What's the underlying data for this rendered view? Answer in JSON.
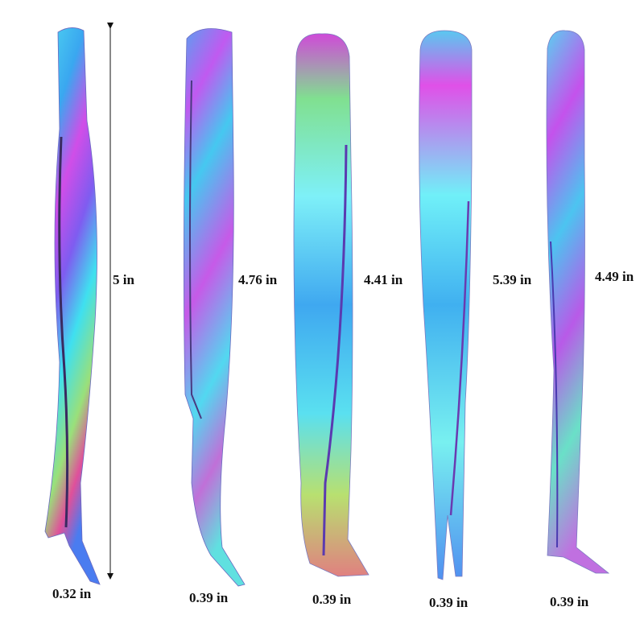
{
  "items": [
    {
      "length": "5 in",
      "width": "0.32 in"
    },
    {
      "length": "4.76 in",
      "width": "0.39 in"
    },
    {
      "length": "4.41 in",
      "width": "0.39 in"
    },
    {
      "length": "5.39 in",
      "width": "0.39 in"
    },
    {
      "length": "4.49 in",
      "width": "0.39 in"
    }
  ]
}
